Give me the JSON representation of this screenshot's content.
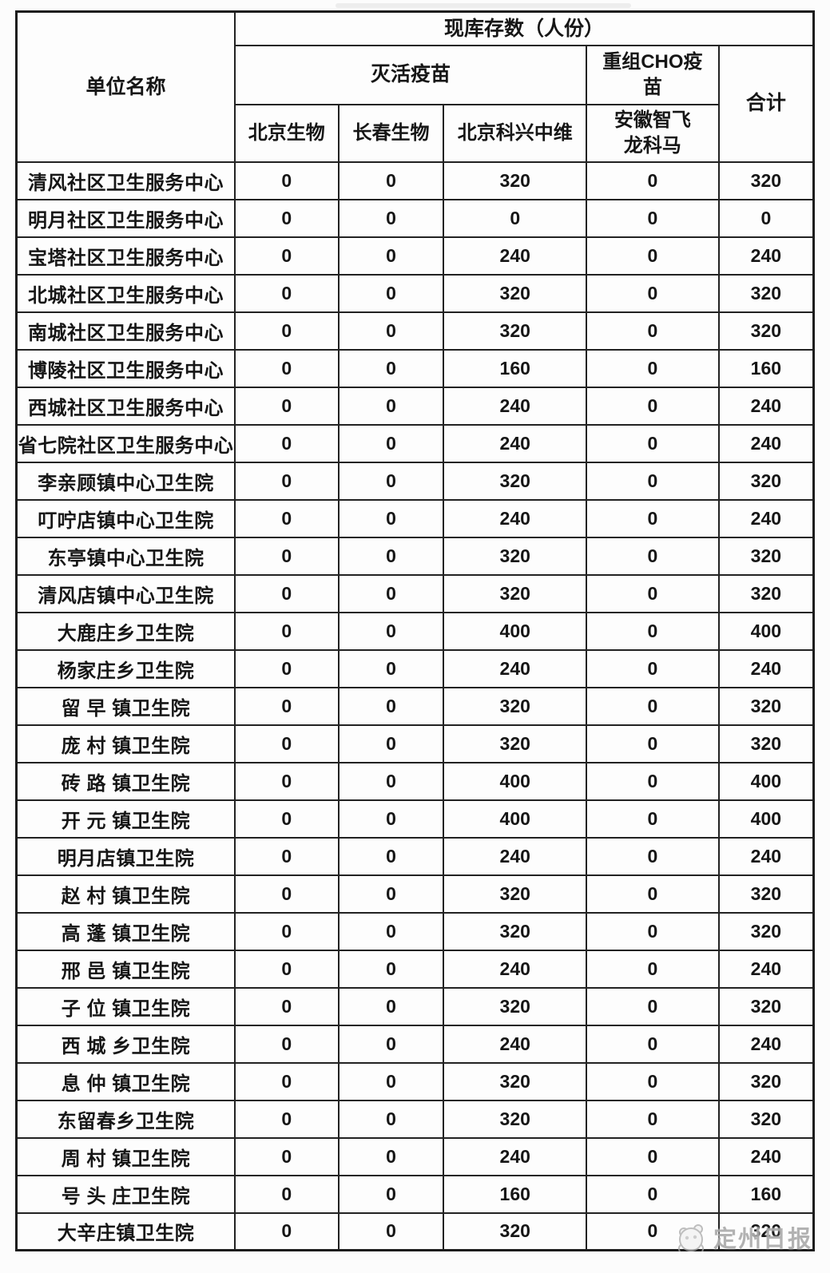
{
  "table": {
    "header": {
      "unit_name": "单位名称",
      "stock_title": "现库存数（人份）",
      "inactivated": "灭活疫苗",
      "cho": "重组CHO疫\n苗",
      "total": "合计",
      "manufacturers": [
        "北京生物",
        "长春生物",
        "北京科兴中维",
        "安徽智飞\n龙科马"
      ]
    },
    "rows": [
      {
        "name": "清风社区卫生服务中心",
        "values": [
          "0",
          "0",
          "320",
          "0",
          "320"
        ]
      },
      {
        "name": "明月社区卫生服务中心",
        "values": [
          "0",
          "0",
          "0",
          "0",
          "0"
        ]
      },
      {
        "name": "宝塔社区卫生服务中心",
        "values": [
          "0",
          "0",
          "240",
          "0",
          "240"
        ]
      },
      {
        "name": "北城社区卫生服务中心",
        "values": [
          "0",
          "0",
          "320",
          "0",
          "320"
        ]
      },
      {
        "name": "南城社区卫生服务中心",
        "values": [
          "0",
          "0",
          "320",
          "0",
          "320"
        ]
      },
      {
        "name": "博陵社区卫生服务中心",
        "values": [
          "0",
          "0",
          "160",
          "0",
          "160"
        ]
      },
      {
        "name": "西城社区卫生服务中心",
        "values": [
          "0",
          "0",
          "240",
          "0",
          "240"
        ]
      },
      {
        "name": "省七院社区卫生服务中心",
        "values": [
          "0",
          "0",
          "240",
          "0",
          "240"
        ]
      },
      {
        "name": "李亲顾镇中心卫生院",
        "values": [
          "0",
          "0",
          "320",
          "0",
          "320"
        ]
      },
      {
        "name": "叮咛店镇中心卫生院",
        "values": [
          "0",
          "0",
          "240",
          "0",
          "240"
        ]
      },
      {
        "name": "东亭镇中心卫生院",
        "values": [
          "0",
          "0",
          "320",
          "0",
          "320"
        ]
      },
      {
        "name": "清风店镇中心卫生院",
        "values": [
          "0",
          "0",
          "320",
          "0",
          "320"
        ]
      },
      {
        "name": "大鹿庄乡卫生院",
        "values": [
          "0",
          "0",
          "400",
          "0",
          "400"
        ]
      },
      {
        "name": "杨家庄乡卫生院",
        "values": [
          "0",
          "0",
          "240",
          "0",
          "240"
        ]
      },
      {
        "name": "留 早 镇卫生院",
        "values": [
          "0",
          "0",
          "320",
          "0",
          "320"
        ]
      },
      {
        "name": "庞 村 镇卫生院",
        "values": [
          "0",
          "0",
          "320",
          "0",
          "320"
        ]
      },
      {
        "name": "砖 路 镇卫生院",
        "values": [
          "0",
          "0",
          "400",
          "0",
          "400"
        ]
      },
      {
        "name": "开 元 镇卫生院",
        "values": [
          "0",
          "0",
          "400",
          "0",
          "400"
        ]
      },
      {
        "name": "明月店镇卫生院",
        "values": [
          "0",
          "0",
          "240",
          "0",
          "240"
        ]
      },
      {
        "name": "赵 村 镇卫生院",
        "values": [
          "0",
          "0",
          "320",
          "0",
          "320"
        ]
      },
      {
        "name": "高 蓬 镇卫生院",
        "values": [
          "0",
          "0",
          "320",
          "0",
          "320"
        ]
      },
      {
        "name": "邢 邑 镇卫生院",
        "values": [
          "0",
          "0",
          "240",
          "0",
          "240"
        ]
      },
      {
        "name": "子 位 镇卫生院",
        "values": [
          "0",
          "0",
          "320",
          "0",
          "320"
        ]
      },
      {
        "name": "西 城 乡卫生院",
        "values": [
          "0",
          "0",
          "240",
          "0",
          "240"
        ]
      },
      {
        "name": "息 仲 镇卫生院",
        "values": [
          "0",
          "0",
          "320",
          "0",
          "320"
        ]
      },
      {
        "name": "东留春乡卫生院",
        "values": [
          "0",
          "0",
          "320",
          "0",
          "320"
        ]
      },
      {
        "name": "周 村 镇卫生院",
        "values": [
          "0",
          "0",
          "240",
          "0",
          "240"
        ]
      },
      {
        "name": "号 头 庄卫生院",
        "values": [
          "0",
          "0",
          "160",
          "0",
          "160"
        ]
      },
      {
        "name": "大辛庄镇卫生院",
        "values": [
          "0",
          "0",
          "320",
          "0",
          "320"
        ]
      }
    ]
  },
  "watermark": {
    "text": "定州日报"
  }
}
